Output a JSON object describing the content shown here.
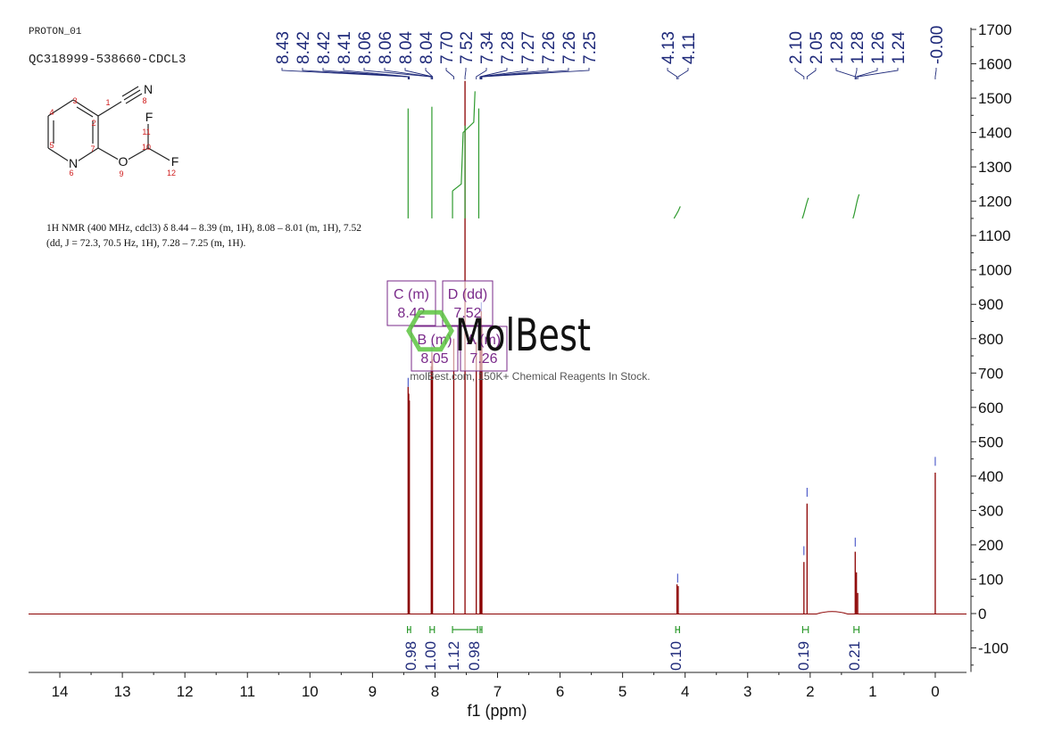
{
  "header": {
    "line1": "PROTON_01",
    "line2": "QC318999-538660-CDCL3"
  },
  "description": "1H NMR (400 MHz, cdcl3) δ 8.44 – 8.39 (m, 1H), 8.08 – 8.01 (m, 1H), 7.52 (dd, J = 72.3, 70.5 Hz, 1H), 7.28 – 7.25 (m, 1H).",
  "structure": {
    "atoms": [
      {
        "n": "1"
      },
      {
        "n": "2"
      },
      {
        "n": "3"
      },
      {
        "n": "4"
      },
      {
        "n": "5"
      },
      {
        "n": "6"
      },
      {
        "n": "7"
      },
      {
        "n": "8"
      },
      {
        "n": "9"
      },
      {
        "n": "10"
      },
      {
        "n": "11"
      },
      {
        "n": "12"
      }
    ],
    "symbols": {
      "N8": "N",
      "N6": "N",
      "O9": "O",
      "F11": "F",
      "F12": "F"
    }
  },
  "watermark": {
    "brand": "MolBest",
    "tagline": "molBest.com, 150K+ Chemical Reagents In Stock."
  },
  "colors": {
    "spectrum": "#8b0000",
    "peak_labels": "#1f2a7a",
    "integrals": "#2e9a2e",
    "multiplet_boxes": "#7a2a8a",
    "watermark": "#5cc440"
  },
  "chart_data": {
    "type": "line",
    "xlabel": "f1 (ppm)",
    "ylabel": "",
    "xlim": [
      14.5,
      -0.5
    ],
    "ylim": [
      -170,
      1700
    ],
    "x_ticks": [
      "14",
      "13",
      "12",
      "11",
      "10",
      "9",
      "8",
      "7",
      "6",
      "5",
      "4",
      "3",
      "2",
      "1",
      "0"
    ],
    "y_ticks": [
      "-100",
      "0",
      "100",
      "200",
      "300",
      "400",
      "500",
      "600",
      "700",
      "800",
      "900",
      "1000",
      "1100",
      "1200",
      "1300",
      "1400",
      "1500",
      "1600",
      "1700"
    ],
    "peaks": [
      {
        "ppm": 8.43,
        "height": 660
      },
      {
        "ppm": 8.42,
        "height": 640
      },
      {
        "ppm": 8.41,
        "height": 620
      },
      {
        "ppm": 8.06,
        "height": 720
      },
      {
        "ppm": 8.05,
        "height": 760
      },
      {
        "ppm": 8.04,
        "height": 740
      },
      {
        "ppm": 7.7,
        "height": 800
      },
      {
        "ppm": 7.52,
        "height": 1550
      },
      {
        "ppm": 7.34,
        "height": 790
      },
      {
        "ppm": 7.28,
        "height": 850
      },
      {
        "ppm": 7.27,
        "height": 860
      },
      {
        "ppm": 7.26,
        "height": 880
      },
      {
        "ppm": 7.25,
        "height": 840
      },
      {
        "ppm": 4.13,
        "height": 85
      },
      {
        "ppm": 4.11,
        "height": 80
      },
      {
        "ppm": 2.1,
        "height": 150
      },
      {
        "ppm": 2.05,
        "height": 320
      },
      {
        "ppm": 1.28,
        "height": 180
      },
      {
        "ppm": 1.26,
        "height": 120
      },
      {
        "ppm": 1.24,
        "height": 60
      },
      {
        "ppm": 0.0,
        "height": 410
      }
    ],
    "peak_labels": [
      {
        "group": [
          "8.43",
          "8.42",
          "8.42",
          "8.41",
          "8.06",
          "8.06",
          "8.04",
          "8.04"
        ],
        "anchor_ppm": 8.04
      },
      {
        "group": [
          "7.70"
        ],
        "anchor_ppm": 7.7
      },
      {
        "group": [
          "7.52",
          "7.34",
          "7.28",
          "7.27",
          "7.26",
          "7.26",
          "7.25"
        ],
        "anchor_ppm": 7.3
      },
      {
        "group": [
          "4.13",
          "4.11"
        ],
        "anchor_ppm": 4.12
      },
      {
        "group": [
          "2.10",
          "2.05",
          "1.28",
          "1.28",
          "1.26",
          "1.24"
        ],
        "anchor_ppm": 1.26
      },
      {
        "group": [
          "-0.00"
        ],
        "anchor_ppm": 0.0
      }
    ],
    "integrals": [
      {
        "from": 8.44,
        "to": 8.39,
        "value": "0.98"
      },
      {
        "from": 8.08,
        "to": 8.01,
        "value": "1.00"
      },
      {
        "from": 7.72,
        "to": 7.32,
        "value": "1.12"
      },
      {
        "from": 7.28,
        "to": 7.25,
        "value": "0.98"
      },
      {
        "from": 4.15,
        "to": 4.09,
        "value": "0.10"
      },
      {
        "from": 2.12,
        "to": 2.03,
        "value": "0.19"
      },
      {
        "from": 1.3,
        "to": 1.22,
        "value": "0.21"
      }
    ],
    "multiplets": [
      {
        "label": "C (m)",
        "shift": "8.42"
      },
      {
        "label": "D (dd)",
        "shift": "7.52"
      },
      {
        "label": "B (m)",
        "shift": "8.05"
      },
      {
        "label": "A (m)",
        "shift": "7.26"
      }
    ]
  }
}
